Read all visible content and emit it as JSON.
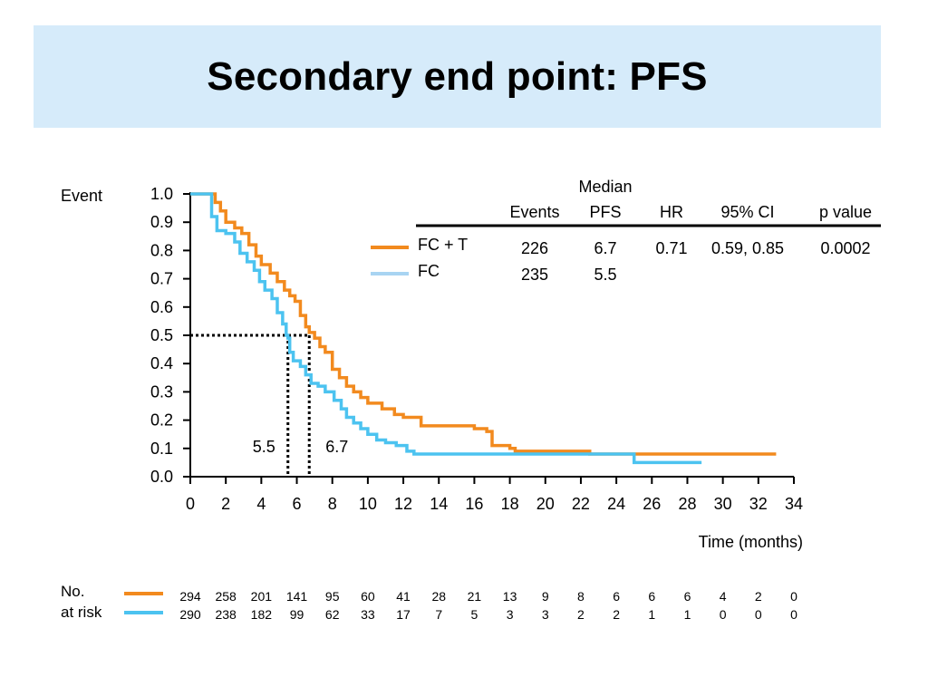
{
  "title": "Secondary end point: PFS",
  "chart_data": {
    "type": "line",
    "ylabel": "Event",
    "xlabel": "Time (months)",
    "xlim": [
      0,
      34
    ],
    "ylim": [
      0.0,
      1.0
    ],
    "x_ticks": [
      "0",
      "2",
      "4",
      "6",
      "8",
      "10",
      "12",
      "14",
      "16",
      "18",
      "20",
      "22",
      "24",
      "26",
      "28",
      "30",
      "32",
      "34"
    ],
    "y_ticks": [
      "0.0",
      "0.1",
      "0.2",
      "0.3",
      "0.4",
      "0.5",
      "0.6",
      "0.7",
      "0.8",
      "0.9",
      "1.0"
    ],
    "colors": {
      "fc_t": "#f28a1e",
      "fc": "#4cc3f0",
      "fc_legend": "#a8d4f2"
    },
    "series": [
      {
        "name": "FC + T",
        "points": [
          [
            0,
            1.0
          ],
          [
            1.0,
            1.0
          ],
          [
            1.4,
            0.97
          ],
          [
            1.7,
            0.94
          ],
          [
            2.0,
            0.9
          ],
          [
            2.5,
            0.88
          ],
          [
            2.9,
            0.86
          ],
          [
            3.3,
            0.82
          ],
          [
            3.7,
            0.78
          ],
          [
            4.0,
            0.75
          ],
          [
            4.5,
            0.72
          ],
          [
            4.9,
            0.69
          ],
          [
            5.3,
            0.66
          ],
          [
            5.6,
            0.64
          ],
          [
            5.9,
            0.62
          ],
          [
            6.2,
            0.57
          ],
          [
            6.5,
            0.53
          ],
          [
            6.7,
            0.51
          ],
          [
            7.0,
            0.49
          ],
          [
            7.3,
            0.46
          ],
          [
            7.6,
            0.44
          ],
          [
            8.0,
            0.38
          ],
          [
            8.4,
            0.35
          ],
          [
            8.8,
            0.32
          ],
          [
            9.2,
            0.3
          ],
          [
            9.6,
            0.28
          ],
          [
            10.0,
            0.26
          ],
          [
            10.8,
            0.24
          ],
          [
            11.5,
            0.22
          ],
          [
            12.0,
            0.21
          ],
          [
            13.0,
            0.18
          ],
          [
            14.0,
            0.18
          ],
          [
            15.0,
            0.18
          ],
          [
            16.0,
            0.17
          ],
          [
            16.7,
            0.16
          ],
          [
            17.0,
            0.11
          ],
          [
            18.0,
            0.1
          ],
          [
            18.3,
            0.09
          ],
          [
            22.0,
            0.09
          ],
          [
            22.5,
            0.08
          ],
          [
            24.5,
            0.08
          ],
          [
            33.0,
            0.08
          ]
        ]
      },
      {
        "name": "FC",
        "points": [
          [
            0,
            1.0
          ],
          [
            0.9,
            1.0
          ],
          [
            1.2,
            0.92
          ],
          [
            1.5,
            0.87
          ],
          [
            2.0,
            0.86
          ],
          [
            2.5,
            0.83
          ],
          [
            2.8,
            0.79
          ],
          [
            3.2,
            0.76
          ],
          [
            3.6,
            0.73
          ],
          [
            3.9,
            0.69
          ],
          [
            4.2,
            0.66
          ],
          [
            4.6,
            0.63
          ],
          [
            4.9,
            0.58
          ],
          [
            5.2,
            0.54
          ],
          [
            5.4,
            0.5
          ],
          [
            5.5,
            0.49
          ],
          [
            5.6,
            0.44
          ],
          [
            5.8,
            0.41
          ],
          [
            6.2,
            0.39
          ],
          [
            6.5,
            0.36
          ],
          [
            6.8,
            0.33
          ],
          [
            7.2,
            0.32
          ],
          [
            7.6,
            0.3
          ],
          [
            8.1,
            0.27
          ],
          [
            8.5,
            0.24
          ],
          [
            8.8,
            0.21
          ],
          [
            9.2,
            0.19
          ],
          [
            9.6,
            0.17
          ],
          [
            10.0,
            0.15
          ],
          [
            10.5,
            0.13
          ],
          [
            11.0,
            0.12
          ],
          [
            11.6,
            0.11
          ],
          [
            12.2,
            0.09
          ],
          [
            12.6,
            0.08
          ],
          [
            13.0,
            0.08
          ],
          [
            22.0,
            0.08
          ],
          [
            24.9,
            0.08
          ],
          [
            25.0,
            0.05
          ],
          [
            28.8,
            0.05
          ]
        ]
      }
    ],
    "medians": [
      {
        "label": "5.5",
        "x": 5.5
      },
      {
        "label": "6.7",
        "x": 6.7
      }
    ],
    "median_level": 0.5,
    "table": {
      "headers": {
        "events": "Events",
        "median_top": "Median",
        "median_bottom": "PFS",
        "hr": "HR",
        "ci": "95% CI",
        "p": "p value"
      },
      "rows": [
        {
          "name": "FC + T",
          "events": "226",
          "pfs": "6.7",
          "hr": "0.71",
          "ci": "0.59, 0.85",
          "p": "0.0002"
        },
        {
          "name": "FC",
          "events": "235",
          "pfs": "5.5",
          "hr": "",
          "ci": "",
          "p": ""
        }
      ]
    },
    "at_risk": {
      "label_line1": "No.",
      "label_line2": "at risk",
      "fc_t": [
        "294",
        "258",
        "201",
        "141",
        "95",
        "60",
        "41",
        "28",
        "21",
        "13",
        "9",
        "8",
        "6",
        "6",
        "6",
        "4",
        "2",
        "0"
      ],
      "fc": [
        "290",
        "238",
        "182",
        "99",
        "62",
        "33",
        "17",
        "7",
        "5",
        "3",
        "3",
        "2",
        "2",
        "1",
        "1",
        "0",
        "0",
        "0"
      ]
    }
  }
}
